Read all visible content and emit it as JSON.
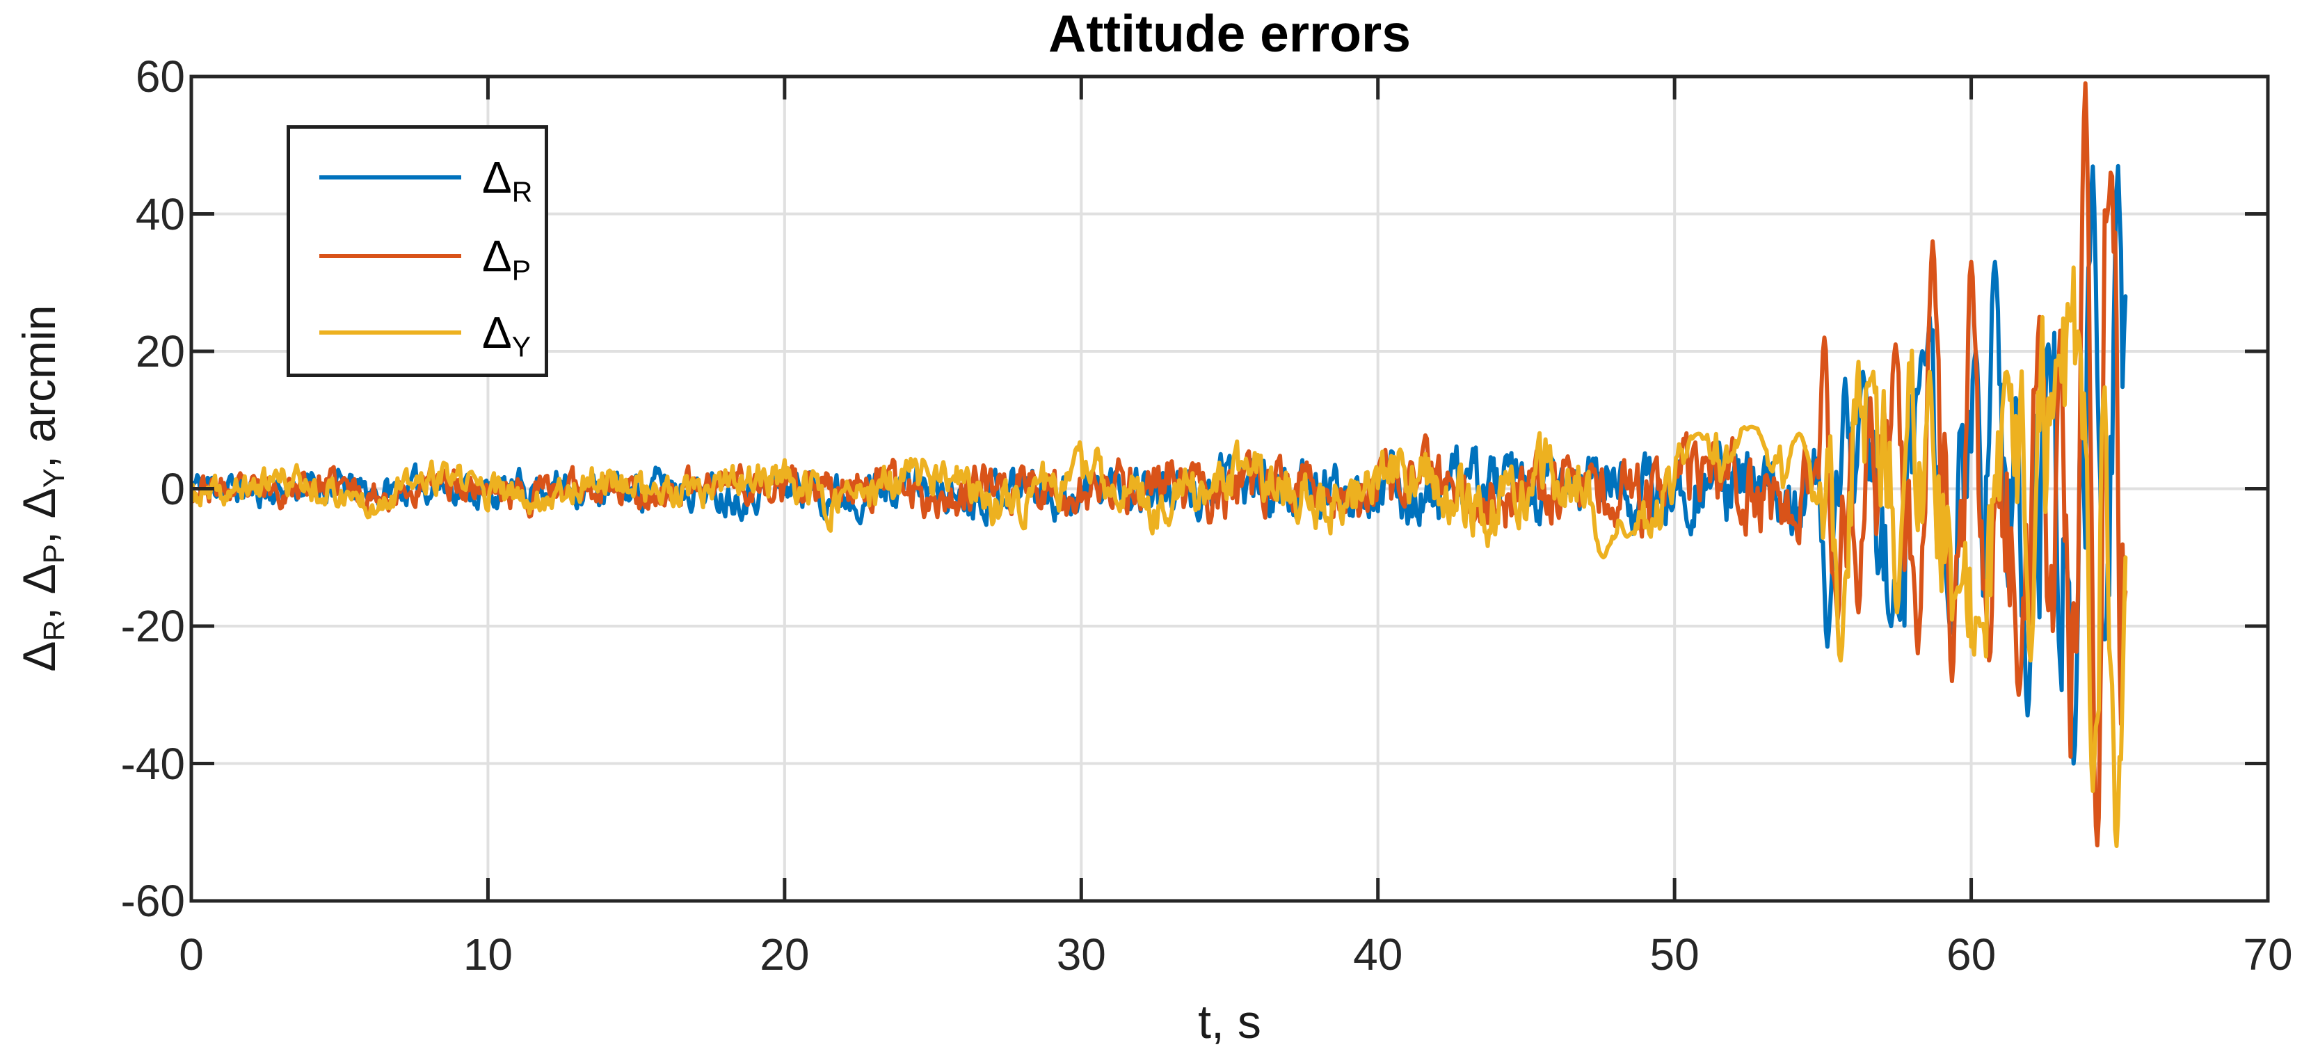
{
  "chart_data": {
    "type": "line",
    "title": "Attitude errors",
    "xlabel": "t, s",
    "ylabel": "ΔR, ΔP, ΔY, arcmin",
    "ylabel_parts": [
      {
        "t": "Δ"
      },
      {
        "s": "R"
      },
      {
        "t": ", "
      },
      {
        "t": "Δ"
      },
      {
        "s": "P"
      },
      {
        "t": ", "
      },
      {
        "t": "Δ"
      },
      {
        "s": "Y"
      },
      {
        "t": ", arcmin"
      }
    ],
    "xlim": [
      0,
      70
    ],
    "ylim": [
      -60,
      60
    ],
    "xticks": [
      {
        "v": 0,
        "label": "0"
      },
      {
        "v": 10,
        "label": "10"
      },
      {
        "v": 20,
        "label": "20"
      },
      {
        "v": 30,
        "label": "30"
      },
      {
        "v": 40,
        "label": "40"
      },
      {
        "v": 50,
        "label": "50"
      },
      {
        "v": 60,
        "label": "60"
      },
      {
        "v": 70,
        "label": "70"
      }
    ],
    "yticks": [
      {
        "v": -60,
        "label": "-60"
      },
      {
        "v": -40,
        "label": "-40"
      },
      {
        "v": -20,
        "label": "-20"
      },
      {
        "v": 0,
        "label": "0"
      },
      {
        "v": 20,
        "label": "20"
      },
      {
        "v": 40,
        "label": "40"
      },
      {
        "v": 60,
        "label": "60"
      }
    ],
    "grid": true,
    "legend_position": "top-left",
    "colors": {
      "axis": "#262626",
      "grid": "#e0e0e0",
      "title": "#000000",
      "background": "#ffffff"
    },
    "signal": {
      "description": "Three zero-mean attitude-error noise traces, band ~±2.5 arcmin at t=0 growing to ~±6 by t=54, sudden divergence at t=55 s with oscillations growing to ±60 arcmin near t=64 s; data ends at t=65.2 s.",
      "dt": 0.05,
      "t_end": 65.2,
      "envelope": [
        [
          0,
          2.3
        ],
        [
          10,
          2.5
        ],
        [
          20,
          3.0
        ],
        [
          30,
          3.6
        ],
        [
          38,
          4.2
        ],
        [
          44,
          5.0
        ],
        [
          48,
          5.3
        ],
        [
          52,
          5.8
        ],
        [
          54.9,
          5.8
        ],
        [
          55.15,
          14
        ],
        [
          57,
          15
        ],
        [
          59,
          16
        ],
        [
          60,
          18
        ],
        [
          61,
          20
        ],
        [
          62,
          23
        ],
        [
          63,
          27
        ],
        [
          63.7,
          34
        ],
        [
          64.2,
          40
        ],
        [
          64.7,
          42
        ],
        [
          65.2,
          38
        ]
      ],
      "noise": {
        "smooth_keep": 0.62,
        "smooth_new": 0.38,
        "gain": 1.9
      }
    },
    "series": [
      {
        "name": "ΔR",
        "symbol": "Δ",
        "sub": "R",
        "color": "#0072BD",
        "seed": 11,
        "slow": {
          "period": 3.9,
          "frac": 0.22,
          "phase": 0.8
        },
        "spikes": [
          [
            55.15,
            -23,
            0.12
          ],
          [
            55.75,
            16,
            0.1
          ],
          [
            56.35,
            17,
            0.12
          ],
          [
            57.3,
            -20,
            0.13
          ],
          [
            58.35,
            20,
            0.12
          ],
          [
            59.3,
            -21,
            0.14
          ],
          [
            60.15,
            20,
            0.12
          ],
          [
            60.8,
            33,
            0.12
          ],
          [
            61.5,
            14,
            0.1
          ],
          [
            61.9,
            -33,
            0.14
          ],
          [
            62.6,
            21,
            0.12
          ],
          [
            63.45,
            -40,
            0.14
          ],
          [
            64.1,
            47,
            0.13
          ],
          [
            64.5,
            -22,
            0.11
          ],
          [
            64.95,
            47,
            0.12
          ],
          [
            65.2,
            28,
            0.07
          ]
        ]
      },
      {
        "name": "ΔP",
        "symbol": "Δ",
        "sub": "P",
        "color": "#D95319",
        "seed": 23,
        "slow": {
          "period": 4.7,
          "frac": 0.28,
          "phase": 2.3
        },
        "spikes": [
          [
            55.05,
            22,
            0.1
          ],
          [
            55.5,
            -19,
            0.1
          ],
          [
            56.2,
            -18,
            0.12
          ],
          [
            57.45,
            21,
            0.12
          ],
          [
            58.2,
            -24,
            0.12
          ],
          [
            58.7,
            36,
            0.13
          ],
          [
            59.35,
            -28,
            0.13
          ],
          [
            60.0,
            33,
            0.12
          ],
          [
            60.6,
            -25,
            0.12
          ],
          [
            61.6,
            -30,
            0.14
          ],
          [
            62.3,
            25,
            0.12
          ],
          [
            63.0,
            23,
            0.12
          ],
          [
            63.55,
            -30,
            0.12
          ],
          [
            63.85,
            60,
            0.13
          ],
          [
            64.25,
            -52,
            0.13
          ],
          [
            64.7,
            46,
            0.12
          ],
          [
            65.2,
            -15,
            0.07
          ]
        ]
      },
      {
        "name": "ΔY",
        "symbol": "Δ",
        "sub": "Y",
        "color": "#EDB120",
        "seed": 37,
        "slow": {
          "period": 5.4,
          "frac": 0.55,
          "phase": 4.2
        },
        "spikes": [
          [
            47.6,
            -10,
            0.3
          ],
          [
            48.4,
            -7,
            0.25
          ],
          [
            50.8,
            8,
            0.4
          ],
          [
            52.6,
            9,
            0.5
          ],
          [
            54.2,
            8,
            0.35
          ],
          [
            55.6,
            -25,
            0.14
          ],
          [
            56.6,
            16,
            0.12
          ],
          [
            57.5,
            -18,
            0.14
          ],
          [
            58.6,
            17,
            0.12
          ],
          [
            59.6,
            -15,
            0.14
          ],
          [
            60.3,
            -20,
            0.12
          ],
          [
            61.2,
            17,
            0.14
          ],
          [
            62.0,
            -25,
            0.14
          ],
          [
            62.9,
            18,
            0.12
          ],
          [
            63.6,
            23,
            0.12
          ],
          [
            64.1,
            -44,
            0.14
          ],
          [
            64.5,
            15,
            0.1
          ],
          [
            64.9,
            -52,
            0.12
          ],
          [
            65.2,
            -10,
            0.07
          ]
        ]
      }
    ]
  }
}
